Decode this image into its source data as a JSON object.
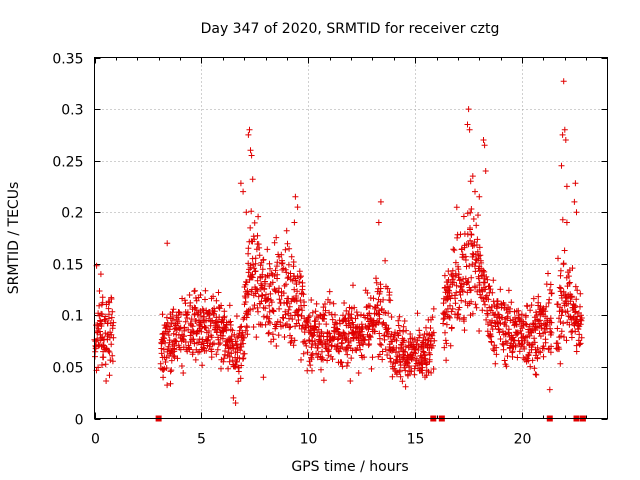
{
  "chart_data": {
    "type": "scatter",
    "title": "Day 347 of 2020, SRMTID for receiver cztg",
    "xlabel": "GPS time / hours",
    "ylabel": "SRMTID / TECUs",
    "xlim": [
      0,
      24
    ],
    "ylim": [
      0,
      0.35
    ],
    "x_ticks": [
      0,
      5,
      10,
      15,
      20
    ],
    "x_tick_labels": [
      "0",
      "5",
      "10",
      "15",
      "20"
    ],
    "y_ticks": [
      0,
      0.05,
      0.1,
      0.15,
      0.2,
      0.25,
      0.3,
      0.35
    ],
    "y_tick_labels": [
      "0",
      "0.05",
      "0.1",
      "0.15",
      "0.2",
      "0.25",
      "0.3",
      "0.35"
    ],
    "grid": true,
    "marker": "+",
    "color": "#e00000",
    "series": [
      {
        "name": "SRMTID",
        "trend": {
          "x": [
            0,
            0.5,
            0.9,
            3.1,
            4,
            5,
            6,
            6.8,
            7.3,
            8,
            9,
            9.5,
            10,
            11,
            12,
            13,
            13.5,
            14,
            15,
            15.5,
            16,
            16.5,
            17,
            17.5,
            18,
            18.5,
            19,
            20,
            21,
            21.5,
            22,
            22.5,
            22.8
          ],
          "y": [
            0.08,
            0.09,
            0.08,
            0.07,
            0.085,
            0.09,
            0.08,
            0.06,
            0.15,
            0.12,
            0.12,
            0.12,
            0.08,
            0.08,
            0.08,
            0.09,
            0.11,
            0.07,
            0.06,
            0.06,
            0.09,
            0.11,
            0.13,
            0.16,
            0.14,
            0.1,
            0.09,
            0.08,
            0.09,
            0.1,
            0.12,
            0.1,
            0.09
          ],
          "spread": [
            0.03,
            0.03,
            0.03,
            0.025,
            0.03,
            0.03,
            0.03,
            0.025,
            0.05,
            0.04,
            0.04,
            0.04,
            0.03,
            0.03,
            0.03,
            0.03,
            0.04,
            0.03,
            0.025,
            0.025,
            0.03,
            0.04,
            0.05,
            0.05,
            0.05,
            0.03,
            0.03,
            0.03,
            0.03,
            0.04,
            0.05,
            0.03,
            0.025
          ]
        },
        "segments": [
          [
            0.0,
            0.9
          ],
          [
            3.1,
            15.9
          ],
          [
            16.3,
            21.4
          ],
          [
            21.6,
            22.8
          ]
        ],
        "outliers": [
          {
            "x": 7.2,
            "y": 0.275
          },
          {
            "x": 7.25,
            "y": 0.28
          },
          {
            "x": 7.3,
            "y": 0.26
          },
          {
            "x": 7.35,
            "y": 0.255
          },
          {
            "x": 7.4,
            "y": 0.232
          },
          {
            "x": 6.85,
            "y": 0.228
          },
          {
            "x": 6.95,
            "y": 0.22
          },
          {
            "x": 7.1,
            "y": 0.2
          },
          {
            "x": 9.4,
            "y": 0.215
          },
          {
            "x": 9.5,
            "y": 0.205
          },
          {
            "x": 9.35,
            "y": 0.19
          },
          {
            "x": 13.4,
            "y": 0.21
          },
          {
            "x": 13.3,
            "y": 0.19
          },
          {
            "x": 17.5,
            "y": 0.3
          },
          {
            "x": 17.45,
            "y": 0.285
          },
          {
            "x": 17.55,
            "y": 0.28
          },
          {
            "x": 17.7,
            "y": 0.235
          },
          {
            "x": 17.6,
            "y": 0.23
          },
          {
            "x": 17.8,
            "y": 0.22
          },
          {
            "x": 18.2,
            "y": 0.27
          },
          {
            "x": 18.25,
            "y": 0.265
          },
          {
            "x": 18.3,
            "y": 0.24
          },
          {
            "x": 18.0,
            "y": 0.215
          },
          {
            "x": 21.95,
            "y": 0.327
          },
          {
            "x": 22.0,
            "y": 0.28
          },
          {
            "x": 21.9,
            "y": 0.275
          },
          {
            "x": 22.05,
            "y": 0.27
          },
          {
            "x": 21.85,
            "y": 0.245
          },
          {
            "x": 22.1,
            "y": 0.225
          },
          {
            "x": 22.5,
            "y": 0.228
          },
          {
            "x": 22.45,
            "y": 0.21
          },
          {
            "x": 22.55,
            "y": 0.2
          },
          {
            "x": 22.1,
            "y": 0.19
          },
          {
            "x": 0.1,
            "y": 0.148
          },
          {
            "x": 0.3,
            "y": 0.14
          },
          {
            "x": 3.4,
            "y": 0.17
          },
          {
            "x": 6.5,
            "y": 0.02
          },
          {
            "x": 6.6,
            "y": 0.015
          },
          {
            "x": 21.3,
            "y": 0.028
          },
          {
            "x": 7.9,
            "y": 0.04
          }
        ]
      }
    ],
    "gap_markers": [
      3.0,
      15.85,
      16.25,
      21.3,
      22.55,
      22.85
    ],
    "gap_marker_y": 0
  }
}
